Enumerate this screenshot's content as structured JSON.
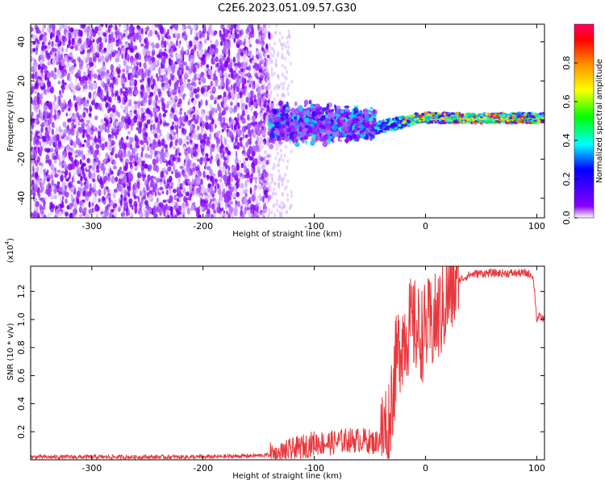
{
  "title": "C2E6.2023.051.09.57.G30",
  "chart_data": [
    {
      "type": "heatmap",
      "xlabel": "Height of straight line (km)",
      "ylabel": "Frequency (Hz)",
      "xlim": [
        -355,
        107
      ],
      "ylim": [
        -50,
        49
      ],
      "xticks": [
        -300,
        -200,
        -100,
        0,
        100
      ],
      "xtick_labels": [
        "-300",
        "-200",
        "-100",
        "0",
        "100"
      ],
      "yticks": [
        -40,
        -20,
        0,
        20,
        40
      ],
      "ytick_labels": [
        "-40",
        "-20",
        "0",
        "20",
        "40"
      ],
      "grid": false,
      "colorbar": {
        "label": "Normalized spectral amplitude",
        "range": [
          0.0,
          1.0
        ],
        "ticks": [
          0.0,
          0.2,
          0.4,
          0.6,
          0.8
        ],
        "tick_labels": [
          "0.0",
          "0.2",
          "0.4",
          "0.6",
          "0.8"
        ],
        "colormap": "rainbow",
        "colors": [
          "#ffffff",
          "#8a00ff",
          "#0000ff",
          "#00ffff",
          "#00ff00",
          "#ffff00",
          "#ff8800",
          "#ff0000",
          "#ff0066"
        ]
      },
      "regions": [
        {
          "x_range": [
            -355,
            -140
          ],
          "freq_band": [
            -50,
            49
          ],
          "amplitude": 0.2
        },
        {
          "x_range": [
            -140,
            -45
          ],
          "freq_band": [
            -16,
            13
          ],
          "amplitude": 0.35
        },
        {
          "x_range": [
            -45,
            107
          ],
          "freq_band": [
            -4,
            4
          ],
          "amplitude": 0.6
        }
      ]
    },
    {
      "type": "line",
      "xlabel": "Height of straight line (km)",
      "ylabel": "SNR (10 * v/v)",
      "y_multiplier_label": "(x10",
      "y_multiplier_exp": "4",
      "y_multiplier_close": ")",
      "xlim": [
        -355,
        107
      ],
      "ylim": [
        0,
        1.38
      ],
      "xticks": [
        -300,
        -200,
        -100,
        0,
        100
      ],
      "xtick_labels": [
        "-300",
        "-200",
        "-100",
        "0",
        "100"
      ],
      "yticks": [
        0.2,
        0.4,
        0.6,
        0.8,
        1.0,
        1.2
      ],
      "ytick_labels": [
        "0.2",
        "0.4",
        "0.6",
        "0.8",
        "1.0",
        "1.2"
      ],
      "grid": false,
      "series": [
        {
          "color": "#e8383d",
          "x": [
            -355,
            -300,
            -250,
            -200,
            -150,
            -130,
            -115,
            -100,
            -85,
            -70,
            -55,
            -45,
            -38,
            -32,
            -28,
            -25,
            -22,
            -18,
            -14,
            -10,
            -6,
            -2,
            2,
            6,
            10,
            14,
            18,
            22,
            30,
            40,
            50,
            60,
            70,
            80,
            90,
            96,
            98,
            100,
            102,
            107
          ],
          "y": [
            0.02,
            0.02,
            0.02,
            0.02,
            0.03,
            0.04,
            0.08,
            0.12,
            0.12,
            0.14,
            0.14,
            0.12,
            0.18,
            0.35,
            0.6,
            0.75,
            0.85,
            0.9,
            0.95,
            0.95,
            0.9,
            0.9,
            0.95,
            0.95,
            1.0,
            1.05,
            1.12,
            1.2,
            1.28,
            1.32,
            1.33,
            1.33,
            1.33,
            1.33,
            1.33,
            1.32,
            1.22,
            1.0,
            1.02,
            1.0
          ]
        }
      ]
    }
  ]
}
